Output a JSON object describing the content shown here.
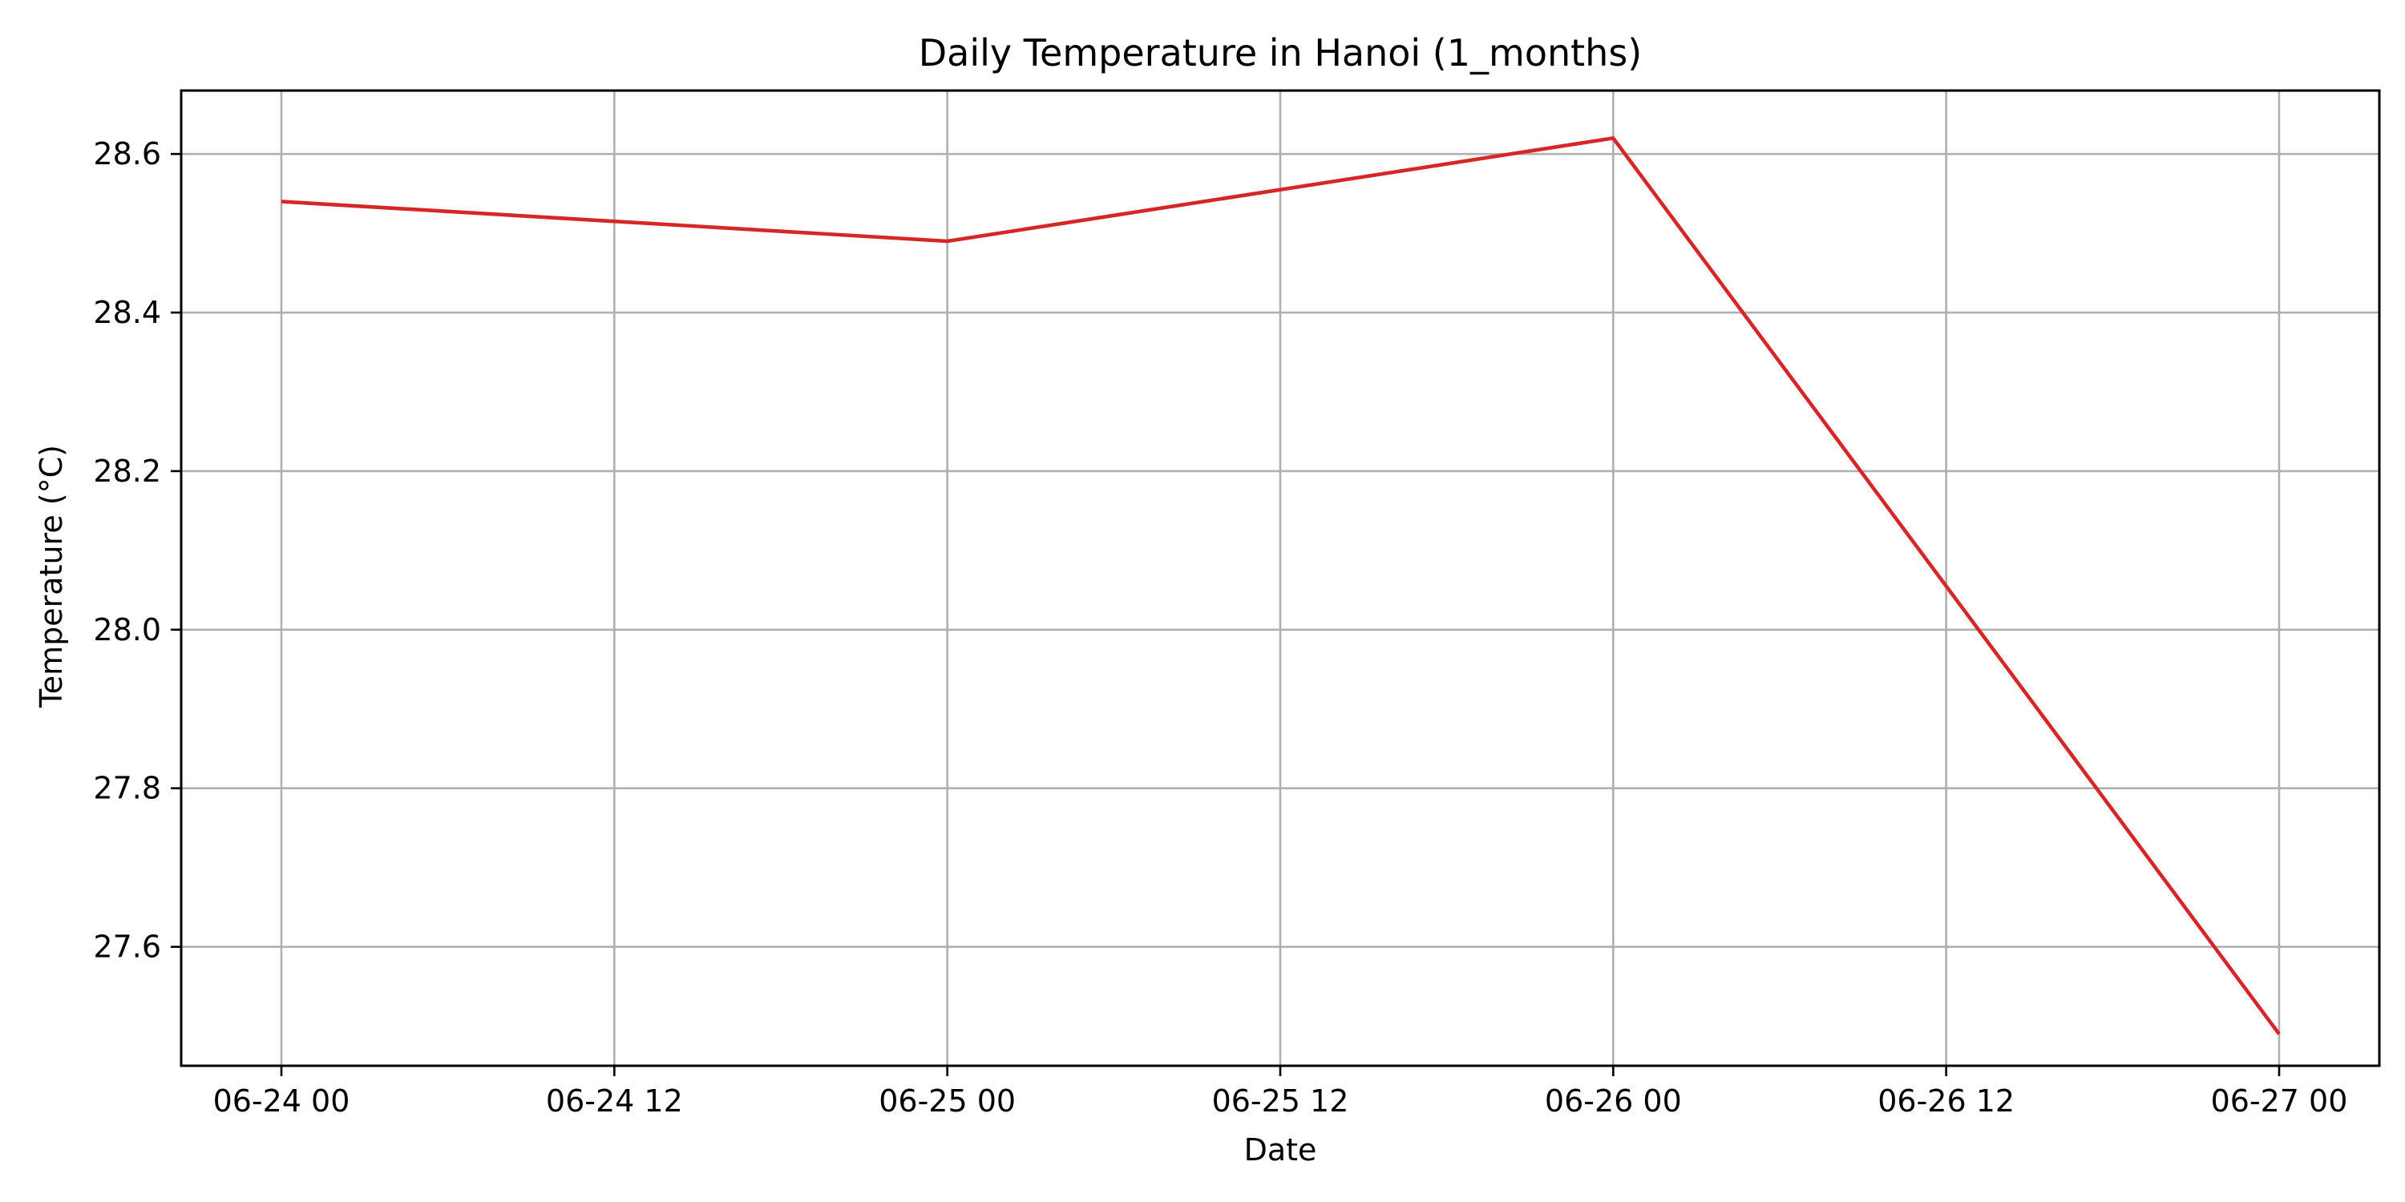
{
  "chart_data": {
    "type": "line",
    "title": "Daily Temperature in Hanoi (1_months)",
    "xlabel": "Date",
    "ylabel": "Temperature (°C)",
    "x": [
      "06-24 00",
      "06-25 00",
      "06-26 00",
      "06-27 00"
    ],
    "x_ticks": [
      "06-24 00",
      "06-24 12",
      "06-25 00",
      "06-25 12",
      "06-26 00",
      "06-26 12",
      "06-27 00"
    ],
    "y_ticks": [
      27.6,
      27.8,
      28.0,
      28.2,
      28.4,
      28.6
    ],
    "ylim": [
      27.45,
      28.68
    ],
    "grid": true,
    "series": [
      {
        "values": [
          28.54,
          28.49,
          28.62,
          27.49
        ],
        "color": "#d62728"
      }
    ]
  }
}
